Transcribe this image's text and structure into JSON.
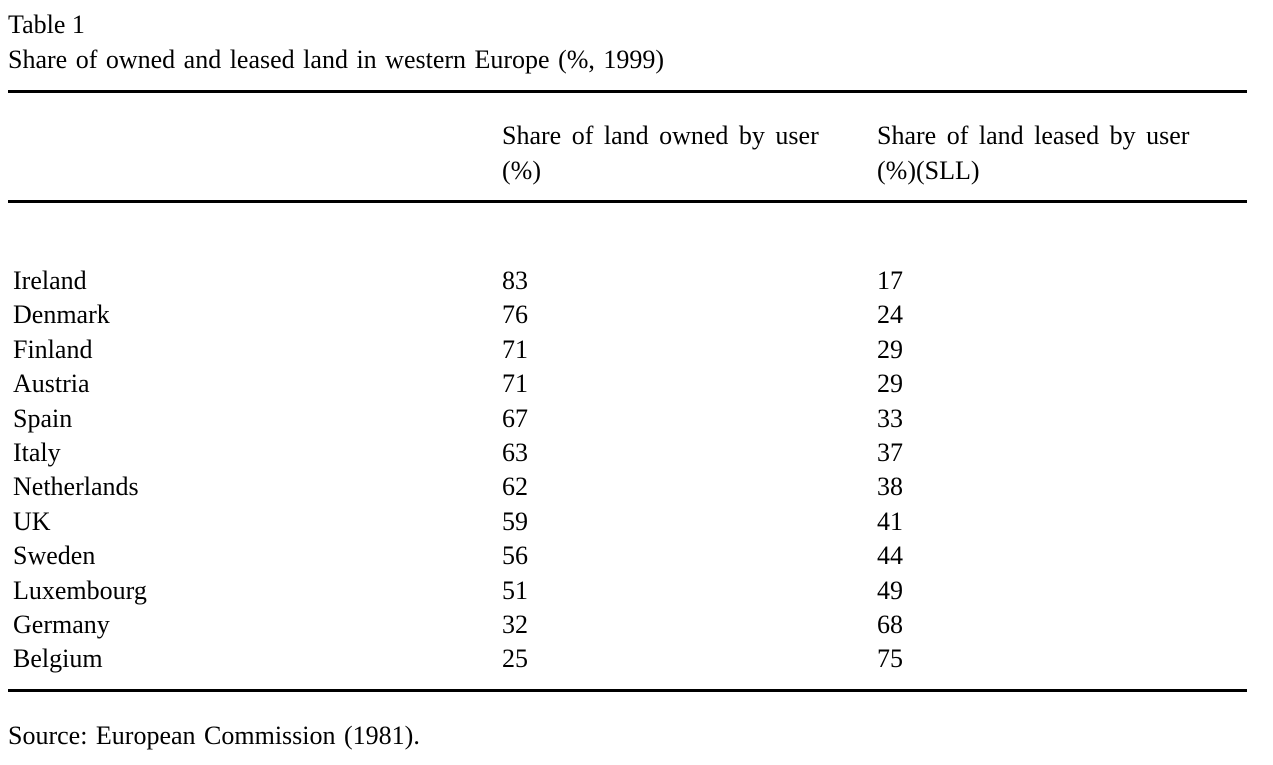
{
  "table": {
    "label": "Table 1",
    "title": "Share of owned and leased land in western Europe (%, 1999)",
    "columns": {
      "owned": {
        "line1": "Share of land owned by user",
        "line2": "(%)"
      },
      "leased": {
        "line1": "Share of land leased by user",
        "line2": "(%)(SLL)"
      }
    },
    "rows": [
      {
        "country": "Ireland",
        "owned": "83",
        "leased": "17"
      },
      {
        "country": "Denmark",
        "owned": "76",
        "leased": "24"
      },
      {
        "country": "Finland",
        "owned": "71",
        "leased": "29"
      },
      {
        "country": "Austria",
        "owned": "71",
        "leased": "29"
      },
      {
        "country": "Spain",
        "owned": "67",
        "leased": "33"
      },
      {
        "country": "Italy",
        "owned": "63",
        "leased": "37"
      },
      {
        "country": "Netherlands",
        "owned": "62",
        "leased": "38"
      },
      {
        "country": "UK",
        "owned": "59",
        "leased": "41"
      },
      {
        "country": "Sweden",
        "owned": "56",
        "leased": "44"
      },
      {
        "country": "Luxembourg",
        "owned": "51",
        "leased": "49"
      },
      {
        "country": "Germany",
        "owned": "32",
        "leased": "68"
      },
      {
        "country": "Belgium",
        "owned": "25",
        "leased": "75"
      }
    ],
    "source": "Source: European Commission (1981)."
  }
}
